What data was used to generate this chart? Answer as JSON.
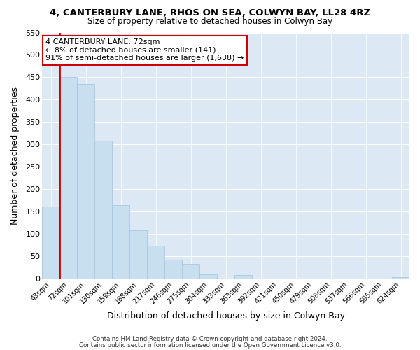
{
  "title1": "4, CANTERBURY LANE, RHOS ON SEA, COLWYN BAY, LL28 4RZ",
  "title2": "Size of property relative to detached houses in Colwyn Bay",
  "xlabel": "Distribution of detached houses by size in Colwyn Bay",
  "ylabel": "Number of detached properties",
  "bar_labels": [
    "43sqm",
    "72sqm",
    "101sqm",
    "130sqm",
    "159sqm",
    "188sqm",
    "217sqm",
    "246sqm",
    "275sqm",
    "304sqm",
    "333sqm",
    "363sqm",
    "392sqm",
    "421sqm",
    "450sqm",
    "479sqm",
    "508sqm",
    "537sqm",
    "566sqm",
    "595sqm",
    "624sqm"
  ],
  "bar_heights": [
    162,
    450,
    435,
    308,
    165,
    108,
    74,
    43,
    33,
    10,
    0,
    8,
    0,
    0,
    0,
    0,
    0,
    0,
    0,
    0,
    3
  ],
  "bar_color": "#c8dff0",
  "bar_edge_color": "#a0c4e0",
  "highlight_bar_index": 1,
  "highlight_color": "#cc0000",
  "annotation_line1": "4 CANTERBURY LANE: 72sqm",
  "annotation_line2": "← 8% of detached houses are smaller (141)",
  "annotation_line3": "91% of semi-detached houses are larger (1,638) →",
  "annotation_box_color": "#ffffff",
  "annotation_box_edge_color": "#cc0000",
  "ylim": [
    0,
    550
  ],
  "yticks": [
    0,
    50,
    100,
    150,
    200,
    250,
    300,
    350,
    400,
    450,
    500,
    550
  ],
  "footer1": "Contains HM Land Registry data © Crown copyright and database right 2024.",
  "footer2": "Contains public sector information licensed under the Open Government Licence v3.0.",
  "bg_color": "#ffffff",
  "grid_color": "#dce9f5",
  "title1_fontsize": 9.5,
  "title2_fontsize": 8.5
}
